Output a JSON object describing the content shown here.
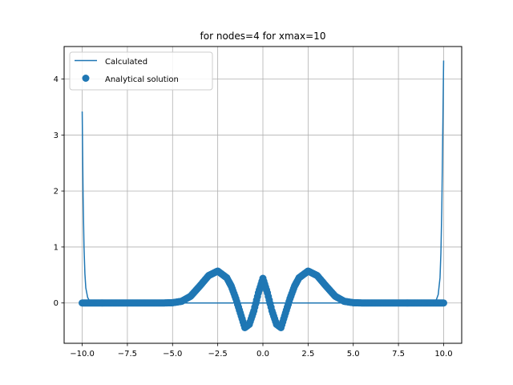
{
  "chart_data": {
    "type": "line",
    "title": "for nodes=4 for xmax=10",
    "xlabel": "",
    "ylabel": "",
    "xlim": [
      -11.0,
      11.0
    ],
    "ylim": [
      -0.72,
      4.58
    ],
    "x_ticks": [
      -10.0,
      -7.5,
      -5.0,
      -2.5,
      0.0,
      2.5,
      5.0,
      7.5,
      10.0
    ],
    "x_tick_labels": [
      "−10.0",
      "−7.5",
      "−5.0",
      "−2.5",
      "0.0",
      "2.5",
      "5.0",
      "7.5",
      "10.0"
    ],
    "y_ticks": [
      0,
      1,
      2,
      3,
      4
    ],
    "y_tick_labels": [
      "0",
      "1",
      "2",
      "3",
      "4"
    ],
    "grid": true,
    "legend_position": "top-left",
    "series": [
      {
        "name": "Calculated",
        "kind": "line",
        "color": "#1f77b4",
        "x": [
          -10.0,
          -9.95,
          -9.9,
          -9.85,
          -9.8,
          -9.7,
          -9.6,
          -9.4,
          -9.0,
          -5.0,
          0.0,
          5.0,
          9.0,
          9.4,
          9.6,
          9.7,
          9.8,
          9.85,
          9.9,
          9.95,
          10.0
        ],
        "y": [
          3.42,
          1.9,
          1.0,
          0.52,
          0.27,
          0.1,
          0.04,
          0.01,
          0.0,
          0.0,
          0.0,
          0.0,
          0.0,
          0.01,
          0.06,
          0.15,
          0.45,
          0.9,
          1.7,
          3.0,
          4.33
        ]
      },
      {
        "name": "Analytical solution",
        "kind": "scatter",
        "color": "#1f77b4",
        "x": [
          -10.0,
          -9.0,
          -8.0,
          -7.0,
          -6.0,
          -5.5,
          -5.0,
          -4.5,
          -4.0,
          -3.5,
          -3.0,
          -2.5,
          -2.0,
          -1.75,
          -1.5,
          -1.25,
          -1.0,
          -0.75,
          -0.5,
          -0.25,
          0.0,
          0.25,
          0.5,
          0.75,
          1.0,
          1.25,
          1.5,
          1.75,
          2.0,
          2.5,
          3.0,
          3.5,
          4.0,
          4.5,
          5.0,
          5.5,
          6.0,
          7.0,
          8.0,
          9.0,
          10.0
        ],
        "y": [
          0.0,
          0.0,
          0.0,
          0.0,
          0.0,
          0.0,
          0.005,
          0.03,
          0.12,
          0.3,
          0.49,
          0.57,
          0.45,
          0.3,
          0.08,
          -0.18,
          -0.44,
          -0.38,
          -0.14,
          0.18,
          0.44,
          0.18,
          -0.14,
          -0.38,
          -0.44,
          -0.18,
          0.08,
          0.3,
          0.45,
          0.57,
          0.49,
          0.3,
          0.12,
          0.03,
          0.005,
          0.0,
          0.0,
          0.0,
          0.0,
          0.0,
          0.0
        ]
      }
    ]
  }
}
